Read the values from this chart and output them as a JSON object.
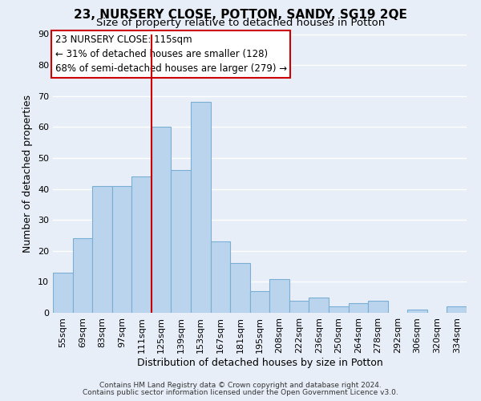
{
  "title": "23, NURSERY CLOSE, POTTON, SANDY, SG19 2QE",
  "subtitle": "Size of property relative to detached houses in Potton",
  "xlabel": "Distribution of detached houses by size in Potton",
  "ylabel": "Number of detached properties",
  "bar_labels": [
    "55sqm",
    "69sqm",
    "83sqm",
    "97sqm",
    "111sqm",
    "125sqm",
    "139sqm",
    "153sqm",
    "167sqm",
    "181sqm",
    "195sqm",
    "208sqm",
    "222sqm",
    "236sqm",
    "250sqm",
    "264sqm",
    "278sqm",
    "292sqm",
    "306sqm",
    "320sqm",
    "334sqm"
  ],
  "bar_values": [
    13,
    24,
    41,
    41,
    44,
    60,
    46,
    68,
    23,
    16,
    7,
    11,
    4,
    5,
    2,
    3,
    4,
    0,
    1,
    0,
    2
  ],
  "bar_color": "#bad4ed",
  "bar_edge_color": "#7aafd4",
  "ylim": [
    0,
    90
  ],
  "yticks": [
    0,
    10,
    20,
    30,
    40,
    50,
    60,
    70,
    80,
    90
  ],
  "vline_x": 4.5,
  "vline_color": "#cc0000",
  "annotation_title": "23 NURSERY CLOSE: 115sqm",
  "annotation_line1": "← 31% of detached houses are smaller (128)",
  "annotation_line2": "68% of semi-detached houses are larger (279) →",
  "annotation_box_facecolor": "#ffffff",
  "annotation_box_edgecolor": "#cc0000",
  "footer1": "Contains HM Land Registry data © Crown copyright and database right 2024.",
  "footer2": "Contains public sector information licensed under the Open Government Licence v3.0.",
  "background_color": "#e8eef8",
  "grid_color": "#ffffff",
  "title_fontsize": 11,
  "subtitle_fontsize": 9.5,
  "axis_label_fontsize": 9,
  "tick_fontsize": 8,
  "annotation_fontsize": 8.5,
  "footer_fontsize": 6.5
}
